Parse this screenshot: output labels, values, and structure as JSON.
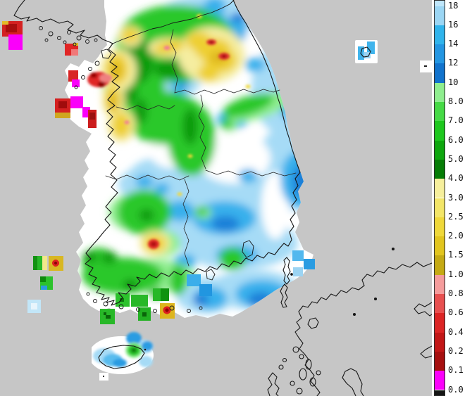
{
  "colorbar": {
    "labels": [
      "18",
      "16",
      "14",
      "12",
      "10",
      "8.0",
      "7.0",
      "6.0",
      "5.0",
      "4.0",
      "3.0",
      "2.5",
      "2.0",
      "1.5",
      "1.0",
      "0.8",
      "0.6",
      "0.4",
      "0.2",
      "0.1",
      "0.0"
    ],
    "segment_colors": [
      "#bfe6fa",
      "#9bd6f4",
      "#30b4ec",
      "#2396e2",
      "#1173cd",
      "#8fee8f",
      "#46da46",
      "#1ec81e",
      "#0ea70e",
      "#067d06",
      "#f6ef9c",
      "#f3e668",
      "#efd83a",
      "#e2c51e",
      "#c5aa14",
      "#f59c9c",
      "#e85050",
      "#dc2424",
      "#c21616",
      "#a60f0f",
      "#fb00fb",
      "#151515"
    ],
    "border_color": "#2b2b2b",
    "panel_background": "#ffffff"
  },
  "map": {
    "sea_color": "#c6c6c6",
    "no_precip_color": "#ffffff",
    "coastline_color": "#161616",
    "palette": {
      "light_blue": "#a6dbf6",
      "medium_blue": "#38b0ec",
      "deep_blue": "#1b80d8",
      "pale_green": "#90ee90",
      "green": "#2cc82c",
      "dark_green": "#0b9b0b",
      "pale_yellow": "#f5eda0",
      "gold": "#eecf30",
      "red": "#dc2424",
      "magenta": "#fa00fa"
    }
  }
}
